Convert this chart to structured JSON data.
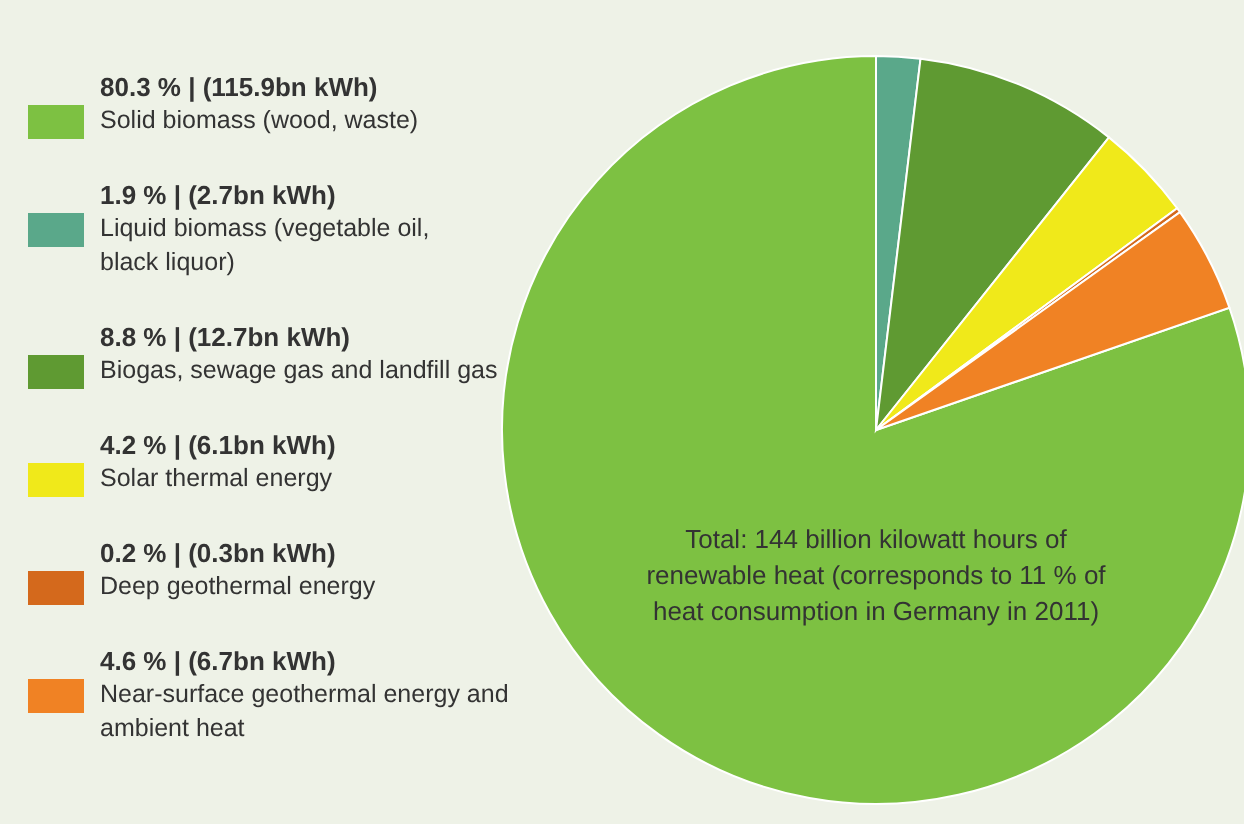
{
  "chart_data": {
    "type": "pie",
    "categories": [
      "Solid biomass (wood, waste)",
      "Liquid biomass (vegetable oil, black liquor)",
      "Biogas, sewage gas and landfill gas",
      "Solar thermal energy",
      "Deep geothermal energy",
      "Near-surface geothermal energy and ambient heat"
    ],
    "values": [
      80.3,
      1.9,
      8.8,
      4.2,
      0.2,
      4.6
    ],
    "value_labels": [
      "80.3 % | (115.9bn kWh)",
      "1.9 % | (2.7bn kWh)",
      "8.8 % | (12.7bn kWh)",
      "4.2 % | (6.1bn kWh)",
      "0.2 % | (0.3bn kWh)",
      "4.6 % | (6.7bn kWh)"
    ],
    "colors": [
      "#7dc142",
      "#5aa88a",
      "#5f9a32",
      "#f0e91a",
      "#d4691c",
      "#f08224"
    ],
    "annotations": [
      "Total: 144 billion kilowatt hours of renewable heat (corresponds to 11 % of heat consumption in Germany in 2011)"
    ],
    "legend": "left"
  }
}
